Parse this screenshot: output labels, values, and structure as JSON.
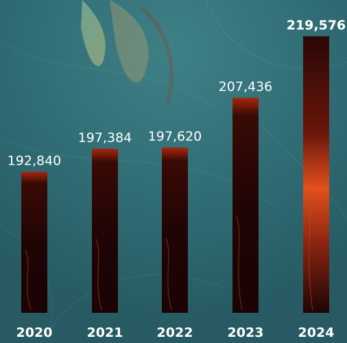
{
  "chart_data": {
    "type": "bar",
    "categories": [
      "2020",
      "2021",
      "2022",
      "2023",
      "2024"
    ],
    "values": [
      192840,
      197384,
      197620,
      207436,
      219576
    ],
    "value_labels": [
      "192,840",
      "197,384",
      "197,620",
      "207,436",
      "219,576"
    ],
    "highlight_index": 4,
    "title": "",
    "xlabel": "",
    "ylabel": "",
    "ylim": [
      165000,
      222000
    ],
    "grid": false,
    "legend": "none"
  },
  "colors": {
    "background": "#2f6a72",
    "bar_dark": "#1a0606",
    "bar_mid": "#5a1208",
    "bar_glow": "#e2501c",
    "text": "#ffffff"
  }
}
